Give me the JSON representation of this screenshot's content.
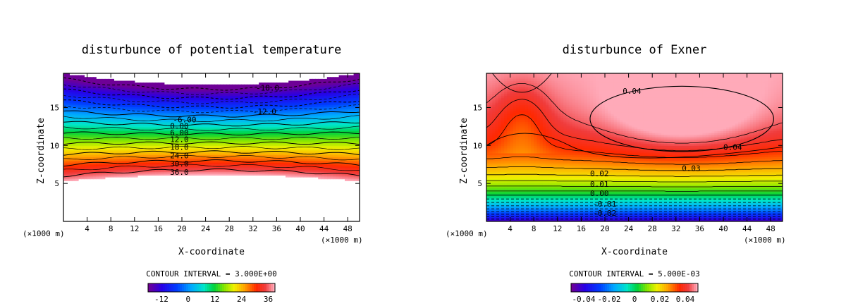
{
  "chart_data": [
    {
      "type": "contour",
      "title": "disturbunce of potential temperature",
      "xlabel": "X-coordinate",
      "ylabel": "Z-coordinate",
      "xunit": "(×1000 m)",
      "xlim": [
        0,
        50
      ],
      "ylim": [
        0,
        19.5
      ],
      "xticks": [
        4,
        8,
        12,
        16,
        20,
        24,
        28,
        32,
        36,
        40,
        44,
        48
      ],
      "yticks": [
        5,
        10,
        15
      ],
      "xtick_labels": [
        "4",
        "8",
        "12",
        "16",
        "20",
        "24",
        "28",
        "32",
        "36",
        "40",
        "44",
        "48"
      ],
      "ytick_labels": [
        "5",
        "10",
        "15"
      ],
      "contour_interval": "CONTOUR INTERVAL = 3.000E+00",
      "colorbar_labels": [
        "-12",
        "0",
        "12",
        "24",
        "36"
      ],
      "colorbar_values": [
        -12,
        0,
        12,
        24,
        36
      ],
      "colorbar_range": [
        -18,
        39
      ],
      "contour_labels": [
        "-18.0",
        "-12.0",
        "-6.00",
        "0.00",
        "6.00",
        "12.0",
        "18.0",
        "24.0",
        "30.0",
        "36.0"
      ],
      "contour_levels": [
        -18,
        -12,
        -6,
        0,
        6,
        12,
        18,
        24,
        30,
        36
      ],
      "contour_label_z": [
        17.6,
        14.5,
        13.4,
        12.6,
        11.7,
        10.8,
        9.8,
        8.7,
        7.6,
        6.5
      ],
      "contour_label_x": [
        32.5,
        32.0,
        18.5,
        18.0,
        18.0,
        18.0,
        18.0,
        18.0,
        18.0,
        18.0
      ],
      "field": {
        "top_z_edge": 19.5,
        "top_z_mid": 18.0,
        "bottom_z_edge": 5.3,
        "bottom_z_mid": 6.2,
        "value_top": -21,
        "value_bottom": 39
      }
    },
    {
      "type": "contour",
      "title": "disturbunce of Exner",
      "xlabel": "X-coordinate",
      "ylabel": "Z-coordinate",
      "xunit": "(×1000 m)",
      "xlim": [
        0,
        50
      ],
      "ylim": [
        0,
        19.5
      ],
      "xticks": [
        4,
        8,
        12,
        16,
        20,
        24,
        28,
        32,
        36,
        40,
        44,
        48
      ],
      "yticks": [
        5,
        10,
        15
      ],
      "xtick_labels": [
        "4",
        "8",
        "12",
        "16",
        "20",
        "24",
        "28",
        "32",
        "36",
        "40",
        "44",
        "48"
      ],
      "ytick_labels": [
        "5",
        "10",
        "15"
      ],
      "contour_interval": "CONTOUR INTERVAL = 5.000E-03",
      "colorbar_labels": [
        "-0.04",
        "-0.02",
        "0",
        "0.02",
        "0.04"
      ],
      "colorbar_values": [
        -0.04,
        -0.02,
        0,
        0.02,
        0.04
      ],
      "colorbar_range": [
        -0.05,
        0.05
      ],
      "contour_labels": [
        "0.04",
        "0.04",
        "0.03",
        "0.02",
        "0.01",
        "0.00",
        "-0.01",
        "-0.02"
      ],
      "contour_levels": [
        0.04,
        0.04,
        0.03,
        0.02,
        0.01,
        0.0,
        -0.01,
        -0.02
      ],
      "contour_label_z": [
        17.2,
        9.8,
        7.0,
        6.3,
        4.9,
        3.7,
        2.3,
        1.1
      ],
      "contour_label_x": [
        23.0,
        40.0,
        33.0,
        17.5,
        17.5,
        17.5,
        18.0,
        18.0
      ],
      "field": {
        "max_value": 0.052,
        "max_center_x": 33,
        "max_center_z": 13.5,
        "value_bottom": -0.045
      }
    }
  ]
}
